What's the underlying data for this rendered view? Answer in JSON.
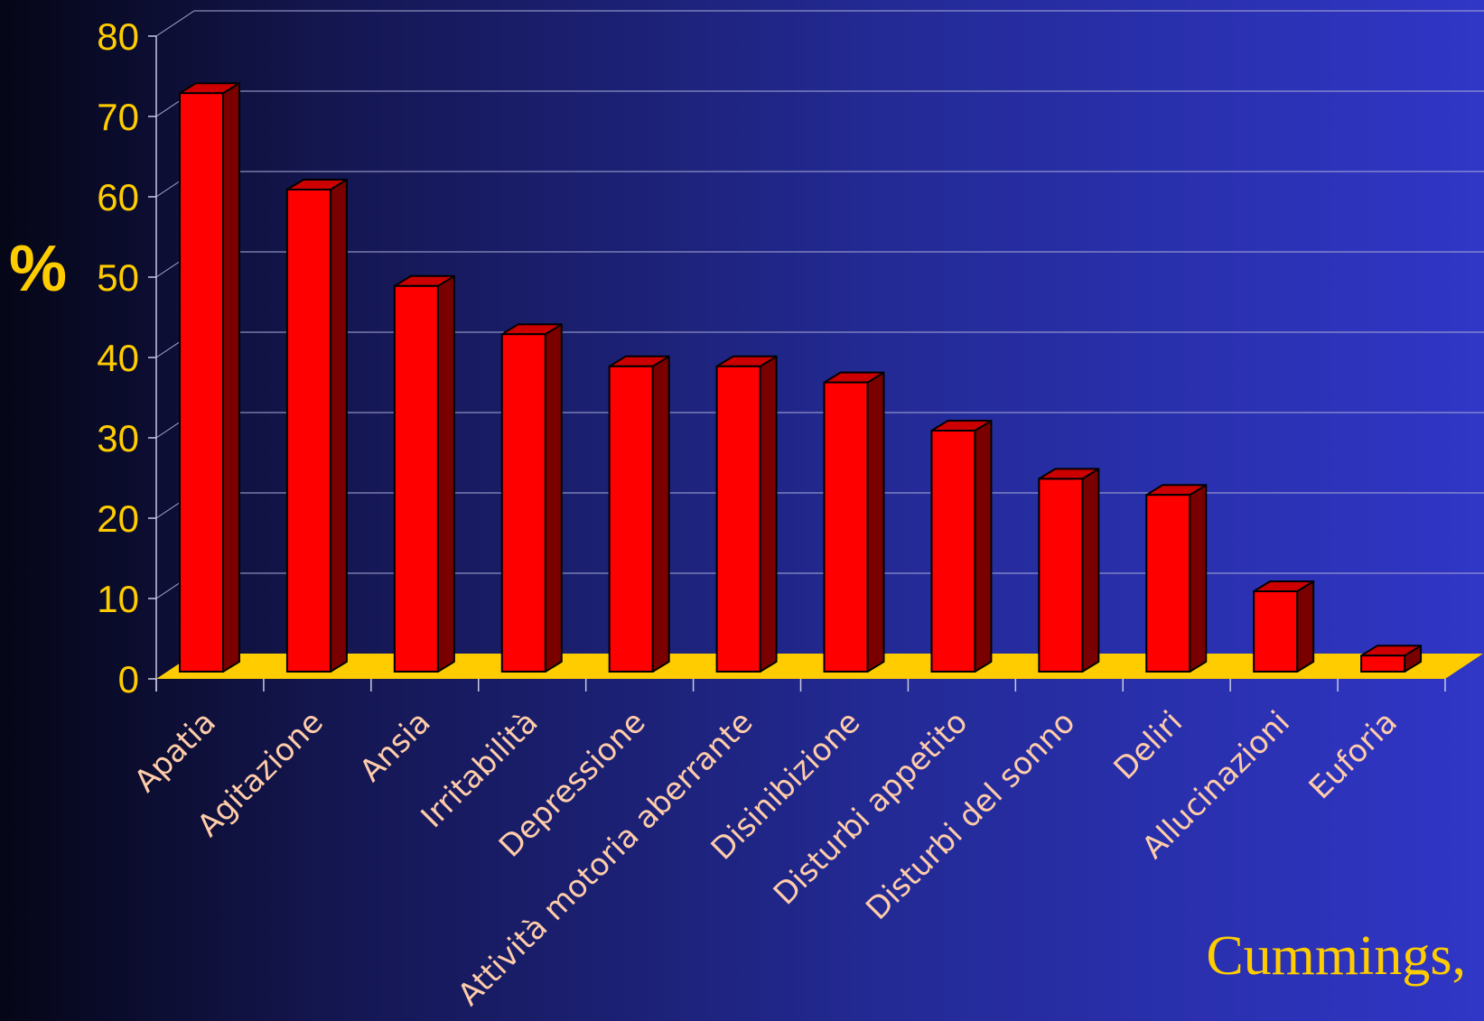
{
  "chart_data": {
    "type": "bar",
    "title": "",
    "xlabel": "",
    "ylabel": "%",
    "ylim": [
      0,
      80
    ],
    "yticks": [
      0,
      10,
      20,
      30,
      40,
      50,
      60,
      70,
      80
    ],
    "grid": true,
    "three_d": true,
    "categories": [
      "Apatia",
      "Agitazione",
      "Ansia",
      "Irritabilità",
      "Depressione",
      "Attività motoria aberrante",
      "Disinibizione",
      "Disturbi appetito",
      "Disturbi del sonno",
      "Deliri",
      "Allucinazioni",
      "Euforia"
    ],
    "values": [
      72,
      60,
      48,
      42,
      38,
      38,
      36,
      30,
      24,
      22,
      10,
      2
    ],
    "colors": {
      "bar_front": "#ff0000",
      "bar_side": "#7a0000",
      "bar_top": "#cc0000",
      "floor": "#ffcc00",
      "tick_label": "#ffcc00",
      "category_label": "#ffccaa",
      "grid": "#a9acd6"
    }
  },
  "citation": "Cummings,"
}
